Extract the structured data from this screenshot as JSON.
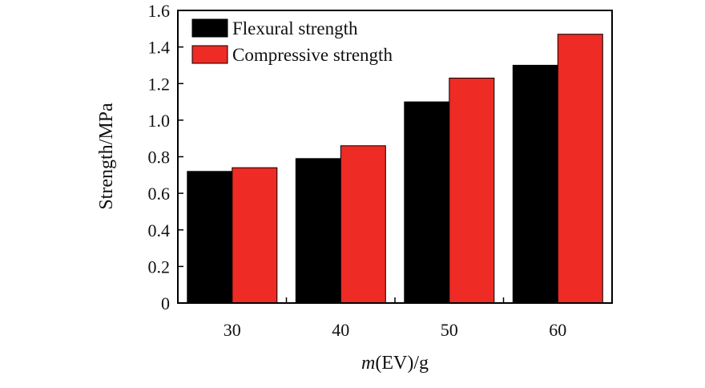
{
  "chart_data": {
    "type": "bar",
    "title": "",
    "categories": [
      "30",
      "40",
      "50",
      "60"
    ],
    "series": [
      {
        "name": "Flexural strength",
        "color": "#000000",
        "values": [
          0.72,
          0.79,
          1.1,
          1.3
        ]
      },
      {
        "name": "Compressive strength",
        "color": "#ee2b24",
        "values": [
          0.74,
          0.86,
          1.23,
          1.47
        ]
      }
    ],
    "xlabel": {
      "italic_part": "m",
      "rest": "(EV)/g"
    },
    "ylabel": "Strength/MPa",
    "ylim": [
      0,
      1.6
    ],
    "yticks": [
      "0",
      "0.2",
      "0.4",
      "0.6",
      "0.8",
      "1.0",
      "1.2",
      "1.4",
      "1.6"
    ],
    "legend": {
      "position": "top-left"
    },
    "grid": false
  }
}
